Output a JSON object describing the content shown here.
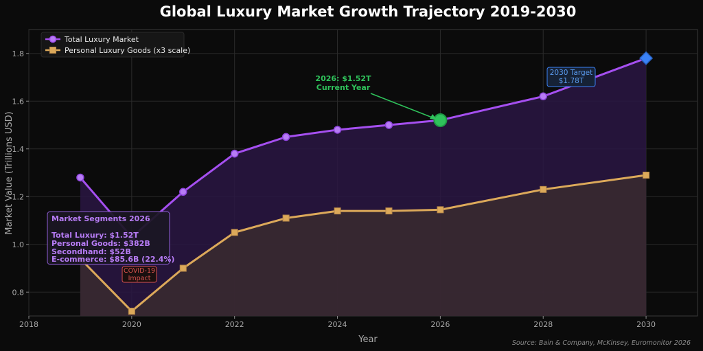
{
  "chart_data": {
    "type": "line",
    "title": "Global Luxury Market Growth Trajectory 2019-2030",
    "xlabel": "Year",
    "ylabel": "Market Value (Trillions USD)",
    "xlim": [
      2018,
      2031
    ],
    "ylim": [
      0.7,
      1.9
    ],
    "x_ticks": [
      2018,
      2020,
      2022,
      2024,
      2026,
      2028,
      2030
    ],
    "y_ticks": [
      0.8,
      1.0,
      1.2,
      1.4,
      1.6,
      1.8
    ],
    "x_tick_labels": [
      "2018",
      "2020",
      "2022",
      "2024",
      "2026",
      "2028",
      "2030"
    ],
    "y_tick_labels": [
      "0.8",
      "1.0",
      "1.2",
      "1.4",
      "1.6",
      "1.8"
    ],
    "grid": true,
    "legend_position": "top-left",
    "series": [
      {
        "name": "Total Luxury Market",
        "color": "#a54ff0",
        "marker": "circle",
        "x": [
          2019,
          2020,
          2021,
          2022,
          2023,
          2024,
          2025,
          2026,
          2028,
          2030
        ],
        "values": [
          1.28,
          1.03,
          1.22,
          1.38,
          1.45,
          1.48,
          1.5,
          1.52,
          1.62,
          1.78
        ]
      },
      {
        "name": "Personal Luxury Goods (x3 scale)",
        "color": "#dca95a",
        "marker": "square",
        "x": [
          2019,
          2020,
          2021,
          2022,
          2023,
          2024,
          2025,
          2026,
          2028,
          2030
        ],
        "values": [
          0.94,
          0.72,
          0.9,
          1.05,
          1.11,
          1.14,
          1.14,
          1.145,
          1.23,
          1.29
        ]
      }
    ],
    "annotations": {
      "current": {
        "line1": "2026: $1.52T",
        "line2": "Current Year",
        "x": 2026,
        "y": 1.52,
        "color": "#2fc25b"
      },
      "target": {
        "line1": "2030 Target",
        "line2": "$1.78T",
        "x": 2030,
        "y": 1.78,
        "color": "#3b82f6"
      },
      "covid": {
        "line1": "COVID-19",
        "line2": "Impact",
        "color": "#d9534f"
      },
      "segments": {
        "title": "Market Segments 2026",
        "lines": [
          "Total Luxury: $1.52T",
          "Personal Goods: $382B",
          "Secondhand: $52B",
          "E-commerce: $85.6B (22.4%)"
        ]
      }
    },
    "source": "Source: Bain & Company, McKinsey, Euromonitor 2026"
  }
}
